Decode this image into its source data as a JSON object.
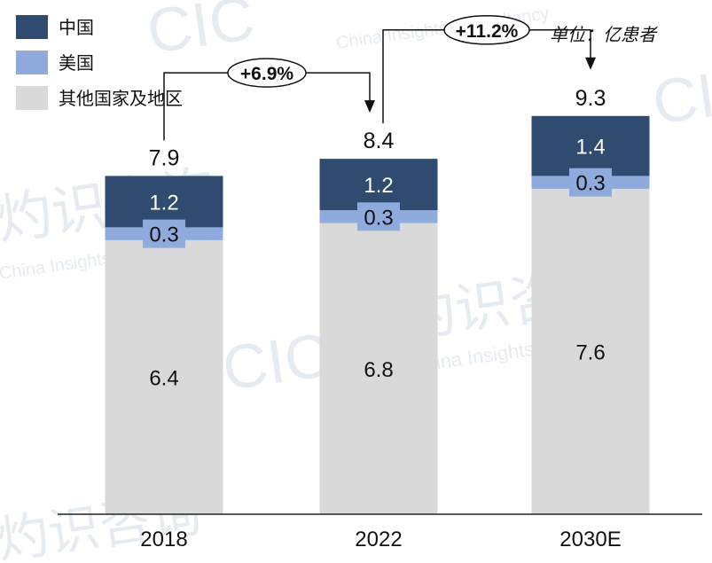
{
  "chart_data": {
    "type": "bar",
    "stacked": true,
    "unit": "单位：亿患者",
    "categories": [
      "2018",
      "2022",
      "2030E"
    ],
    "series": [
      {
        "name": "其他国家及地区",
        "values": [
          6.4,
          6.8,
          7.6
        ],
        "color": "#d9d9d9"
      },
      {
        "name": "美国",
        "values": [
          0.3,
          0.3,
          0.3
        ],
        "color": "#8faadc"
      },
      {
        "name": "中国",
        "values": [
          1.2,
          1.2,
          1.4
        ],
        "color": "#2f4b6f"
      }
    ],
    "totals": [
      7.9,
      8.4,
      9.3
    ],
    "growth": [
      {
        "from": "2018",
        "to": "2022",
        "label": "+6.9%"
      },
      {
        "from": "2022",
        "to": "2030E",
        "label": "+11.2%"
      }
    ],
    "legend": {
      "position": "top-left",
      "items": [
        "中国",
        "美国",
        "其他国家及地区"
      ]
    },
    "grid": false
  },
  "watermark": {
    "brand": "CIC",
    "cn": "灼识咨询",
    "en": "China Insights Consultancy"
  }
}
